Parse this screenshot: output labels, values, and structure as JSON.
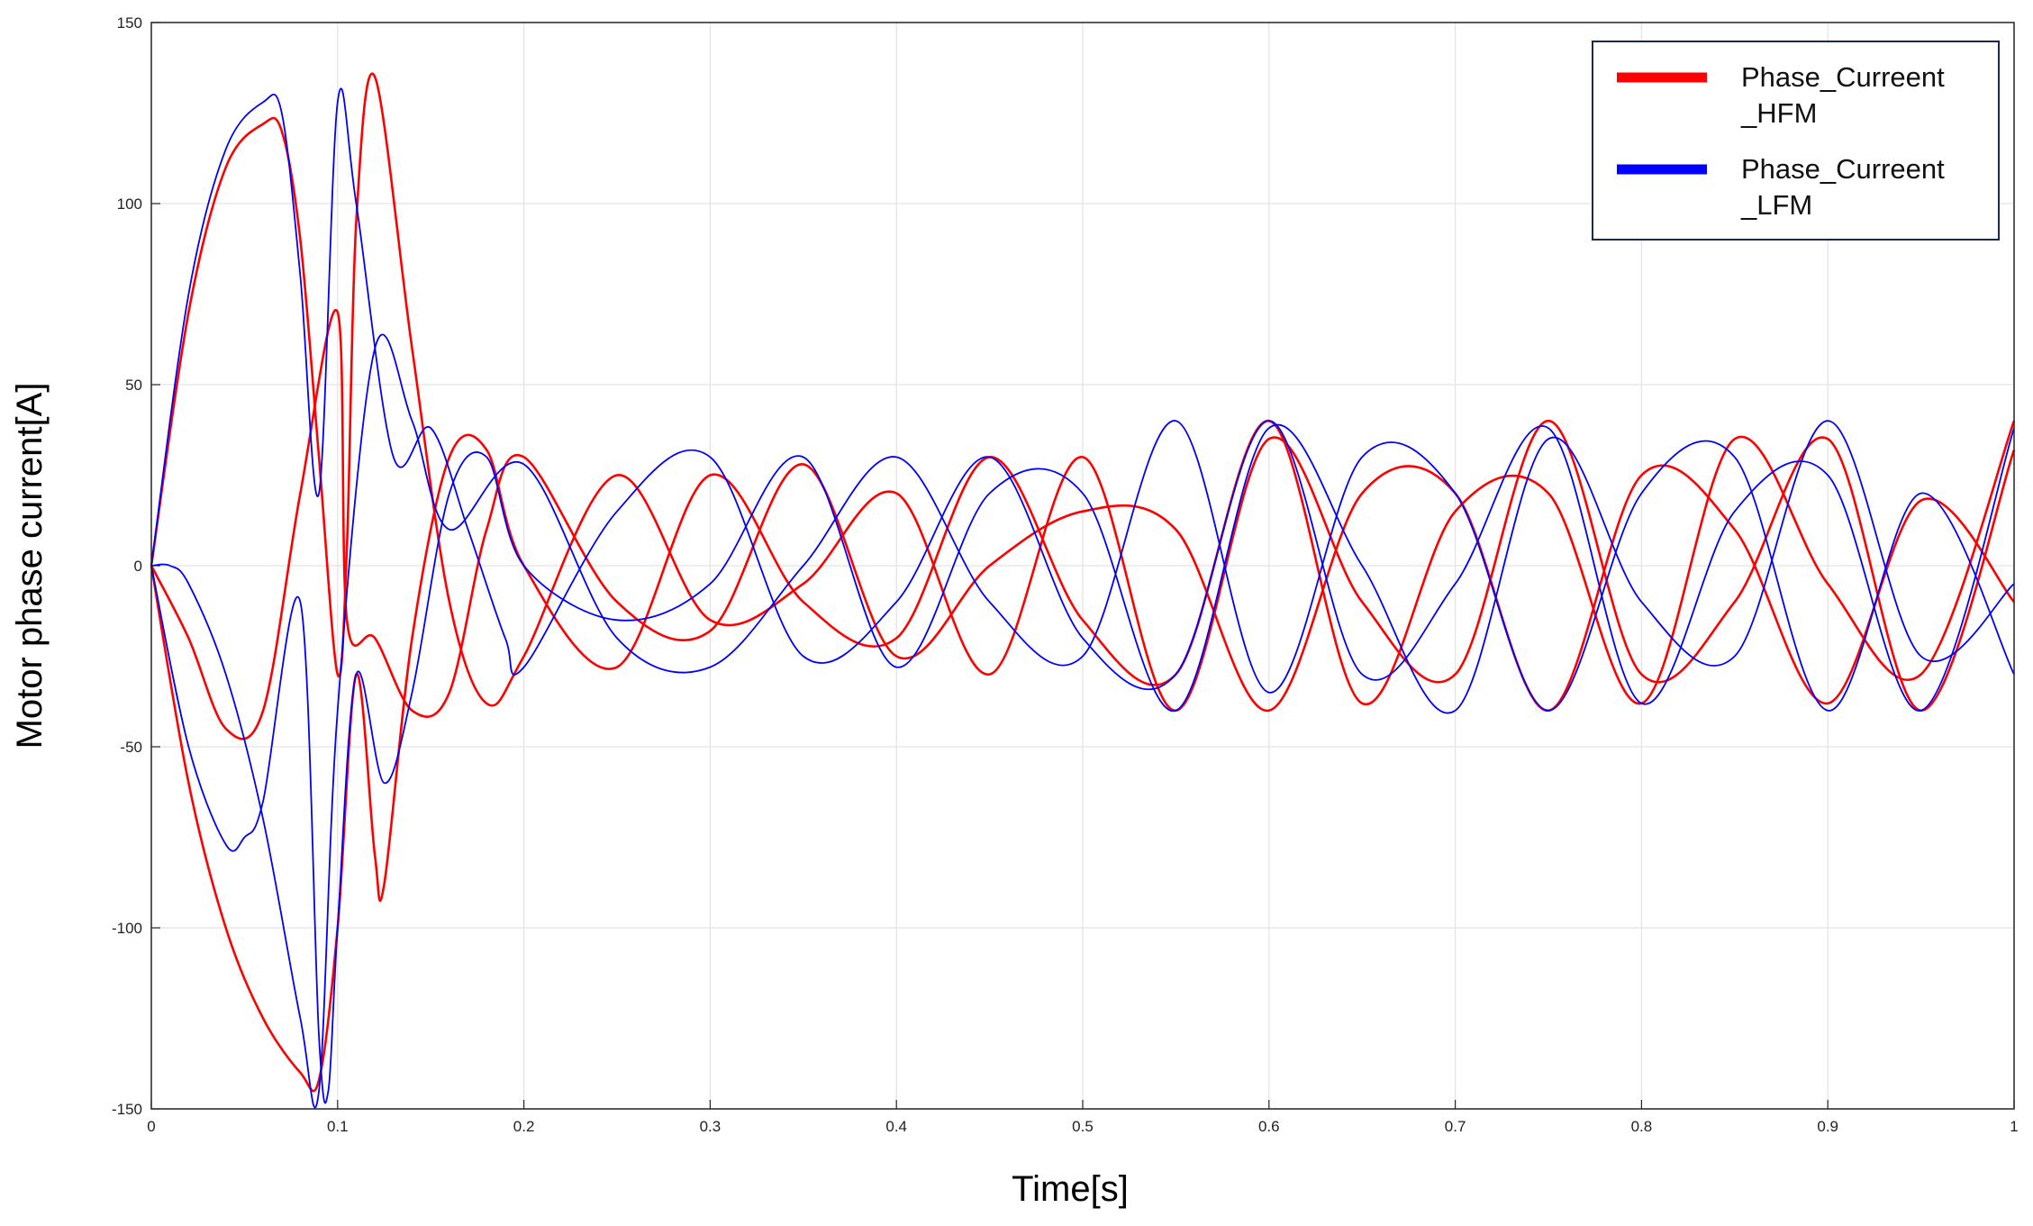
{
  "chart_data": {
    "type": "line",
    "title": "",
    "xlabel": "Time[s]",
    "ylabel": "Motor phase current[A]",
    "xlim": [
      0,
      1
    ],
    "ylim": [
      -150,
      150
    ],
    "grid": true,
    "legend_position": "top-right",
    "x_ticks": [
      0,
      0.1,
      0.2,
      0.3,
      0.4,
      0.5,
      0.6,
      0.7,
      0.8,
      0.9,
      1
    ],
    "x_tick_labels": [
      "0",
      "0.1",
      "0.2",
      "0.3",
      "0.4",
      "0.5",
      "0.6",
      "0.7",
      "0.8",
      "0.9",
      "1"
    ],
    "y_ticks": [
      -150,
      -100,
      -50,
      0,
      50,
      100,
      150
    ],
    "y_tick_labels": [
      "-150",
      "-100",
      "-50",
      "0",
      "50",
      "100",
      "150"
    ],
    "series": [
      {
        "name": "Phase_Curreent_HFM",
        "legend_lines": [
          "Phase_Curreent",
          "_HFM"
        ],
        "color": "#ff0000",
        "phases": [
          {
            "x": [
              0,
              0.02,
              0.04,
              0.06,
              0.07,
              0.08,
              0.09,
              0.1,
              0.105,
              0.11,
              0.12,
              0.14,
              0.16,
              0.18,
              0.2,
              0.25,
              0.3,
              0.35,
              0.4,
              0.45,
              0.5,
              0.55,
              0.6,
              0.65,
              0.7,
              0.75,
              0.8,
              0.85,
              0.9,
              0.95,
              1
            ],
            "y": [
              0,
              70,
              110,
              122,
              120,
              90,
              30,
              -30,
              5,
              95,
              135,
              60,
              -10,
              -38,
              -25,
              25,
              -15,
              -5,
              20,
              -30,
              30,
              -40,
              35,
              -10,
              -30,
              40,
              -30,
              -10,
              35,
              -40,
              32
            ]
          },
          {
            "x": [
              0,
              0.02,
              0.04,
              0.06,
              0.08,
              0.09,
              0.1,
              0.11,
              0.12,
              0.125,
              0.14,
              0.16,
              0.18,
              0.2,
              0.25,
              0.3,
              0.35,
              0.4,
              0.45,
              0.5,
              0.55,
              0.6,
              0.65,
              0.7,
              0.75,
              0.8,
              0.85,
              0.9,
              0.95,
              1
            ],
            "y": [
              0,
              -60,
              -100,
              -125,
              -140,
              -142,
              -100,
              -30,
              -80,
              -88,
              -20,
              30,
              32,
              0,
              -28,
              25,
              -10,
              -20,
              30,
              -15,
              -30,
              40,
              -38,
              15,
              20,
              -38,
              35,
              -5,
              -30,
              40
            ]
          },
          {
            "x": [
              0,
              0.02,
              0.04,
              0.06,
              0.08,
              0.1,
              0.105,
              0.12,
              0.14,
              0.16,
              0.18,
              0.2,
              0.25,
              0.3,
              0.35,
              0.4,
              0.45,
              0.5,
              0.55,
              0.6,
              0.65,
              0.7,
              0.75,
              0.8,
              0.85,
              0.9,
              0.95,
              1
            ],
            "y": [
              0,
              -20,
              -45,
              -40,
              20,
              70,
              -15,
              -20,
              -40,
              -35,
              10,
              30,
              -10,
              -18,
              28,
              -25,
              0,
              15,
              10,
              -40,
              20,
              20,
              -40,
              25,
              10,
              -38,
              18,
              -10
            ]
          }
        ]
      },
      {
        "name": "Phase_Curreent_LFM",
        "legend_lines": [
          "Phase_Curreent",
          "_LFM"
        ],
        "color": "#0000ff",
        "phases": [
          {
            "x": [
              0,
              0.02,
              0.04,
              0.06,
              0.07,
              0.08,
              0.09,
              0.1,
              0.11,
              0.13,
              0.15,
              0.17,
              0.19,
              0.2,
              0.25,
              0.3,
              0.35,
              0.4,
              0.45,
              0.5,
              0.55,
              0.6,
              0.65,
              0.7,
              0.75,
              0.8,
              0.85,
              0.9,
              0.95,
              1
            ],
            "y": [
              0,
              75,
              115,
              128,
              125,
              80,
              20,
              128,
              100,
              30,
              38,
              10,
              -20,
              -28,
              15,
              30,
              -25,
              -10,
              30,
              -20,
              -30,
              40,
              -30,
              -5,
              38,
              -38,
              15,
              25,
              -40,
              38
            ]
          },
          {
            "x": [
              0,
              0.02,
              0.04,
              0.05,
              0.06,
              0.08,
              0.09,
              0.095,
              0.1,
              0.11,
              0.125,
              0.14,
              0.16,
              0.18,
              0.2,
              0.25,
              0.3,
              0.35,
              0.4,
              0.45,
              0.5,
              0.55,
              0.6,
              0.65,
              0.7,
              0.75,
              0.8,
              0.85,
              0.9,
              0.95,
              1
            ],
            "y": [
              0,
              -50,
              -77,
              -75,
              -65,
              -10,
              -130,
              -145,
              -100,
              -30,
              -60,
              -35,
              20,
              30,
              0,
              -15,
              -5,
              30,
              -28,
              20,
              20,
              -40,
              38,
              0,
              -40,
              35,
              -10,
              -25,
              40,
              -25,
              -5
            ]
          },
          {
            "x": [
              0,
              0.01,
              0.02,
              0.04,
              0.06,
              0.08,
              0.09,
              0.1,
              0.12,
              0.14,
              0.16,
              0.2,
              0.25,
              0.3,
              0.35,
              0.4,
              0.45,
              0.5,
              0.55,
              0.6,
              0.65,
              0.7,
              0.75,
              0.8,
              0.85,
              0.9,
              0.95,
              1
            ],
            "y": [
              0,
              0,
              -5,
              -30,
              -70,
              -125,
              -145,
              -40,
              60,
              40,
              10,
              28,
              -20,
              -28,
              0,
              30,
              -10,
              -25,
              40,
              -35,
              30,
              20,
              -40,
              20,
              30,
              -40,
              20,
              -30
            ]
          }
        ]
      }
    ]
  }
}
